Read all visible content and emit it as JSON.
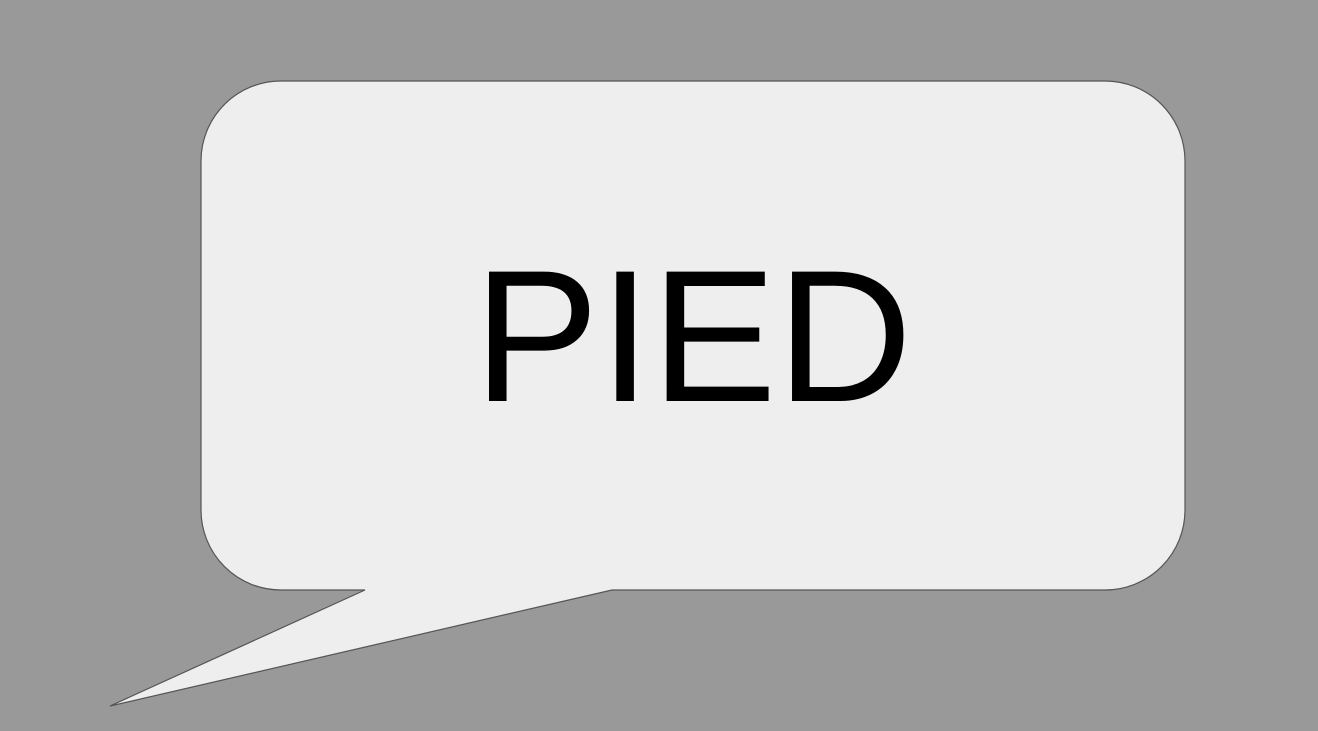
{
  "speech_bubble": {
    "text": "PIED"
  },
  "colors": {
    "background": "#999999",
    "bubble_fill": "#eeeeee",
    "bubble_stroke": "#555555",
    "text": "#000000"
  }
}
